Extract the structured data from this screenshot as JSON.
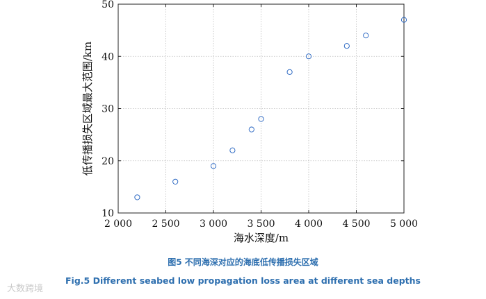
{
  "chart_data": {
    "type": "scatter",
    "xlabel": "海水深度/m",
    "ylabel": "低传播损失区域最大范围/km",
    "xlim": [
      2000,
      5000
    ],
    "ylim": [
      10,
      50
    ],
    "xticks": [
      2000,
      2500,
      3000,
      3500,
      4000,
      4500,
      5000
    ],
    "xtick_labels": [
      "2 000",
      "2 500",
      "3 000",
      "3 500",
      "4 000",
      "4 500",
      "5 000"
    ],
    "yticks": [
      10,
      20,
      30,
      40,
      50
    ],
    "ytick_labels": [
      "10",
      "20",
      "30",
      "40",
      "50"
    ],
    "grid": true,
    "marker": "open-circle",
    "marker_color": "#1f5fbf",
    "points": [
      {
        "x": 2200,
        "y": 13
      },
      {
        "x": 2600,
        "y": 16
      },
      {
        "x": 3000,
        "y": 19
      },
      {
        "x": 3200,
        "y": 22
      },
      {
        "x": 3400,
        "y": 26
      },
      {
        "x": 3500,
        "y": 28
      },
      {
        "x": 3800,
        "y": 37
      },
      {
        "x": 4000,
        "y": 40
      },
      {
        "x": 4400,
        "y": 42
      },
      {
        "x": 4600,
        "y": 44
      },
      {
        "x": 5000,
        "y": 47
      }
    ]
  },
  "caption_cn": "图5 不同海深对应的海底低传播损失区域",
  "caption_en": "Fig.5 Different seabed low propagation loss area at different sea depths",
  "watermark": "大数跨境"
}
